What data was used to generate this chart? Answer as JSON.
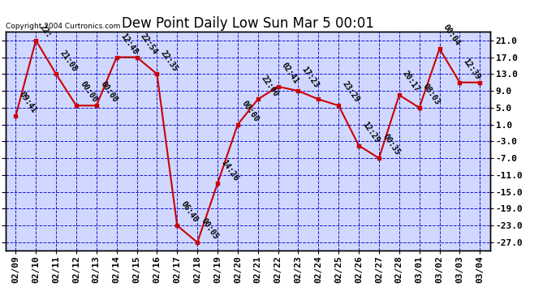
{
  "title": "Dew Point Daily Low Sun Mar 5 00:01",
  "copyright": "Copyright 2004 Curtronics.com",
  "dates": [
    "02/09",
    "02/10",
    "02/11",
    "02/12",
    "02/13",
    "02/14",
    "02/15",
    "02/16",
    "02/17",
    "02/18",
    "02/19",
    "02/20",
    "02/21",
    "02/22",
    "02/23",
    "02/24",
    "02/25",
    "02/26",
    "02/27",
    "02/28",
    "03/01",
    "03/02",
    "03/03",
    "03/04"
  ],
  "values": [
    3.0,
    21.0,
    13.0,
    5.5,
    5.5,
    17.0,
    17.0,
    13.0,
    -23.0,
    -27.0,
    -13.0,
    1.0,
    7.0,
    10.0,
    9.0,
    7.0,
    5.5,
    -4.0,
    -7.0,
    8.0,
    5.0,
    19.0,
    11.0,
    11.0
  ],
  "timestamps": [
    "09:41",
    "22:",
    "21:08",
    "00:00",
    "00:00",
    "12:48",
    "22:54",
    "22:35",
    "06:40",
    "00:05",
    "14:26",
    "00:00",
    "22:00",
    "02:41",
    "17:23",
    "",
    "23:29",
    "12:29",
    "00:35",
    "20:17",
    "08:03",
    "00:04",
    "12:39",
    ""
  ],
  "line_color": "#cc0000",
  "marker_color": "#cc0000",
  "fig_bg_color": "#ffffff",
  "plot_bg_color": "#d0d8ff",
  "grid_color": "#0000cc",
  "title_fontsize": 12,
  "ytick_values": [
    21.0,
    17.0,
    13.0,
    9.0,
    5.0,
    1.0,
    -3.0,
    -7.0,
    -11.0,
    -15.0,
    -19.0,
    -23.0,
    -27.0
  ],
  "ylim": [
    -29.0,
    23.0
  ],
  "border_color": "#000000",
  "annot_fontsize": 7,
  "annot_rotation": -55,
  "tick_label_fontsize": 8,
  "copyright_fontsize": 6.5
}
